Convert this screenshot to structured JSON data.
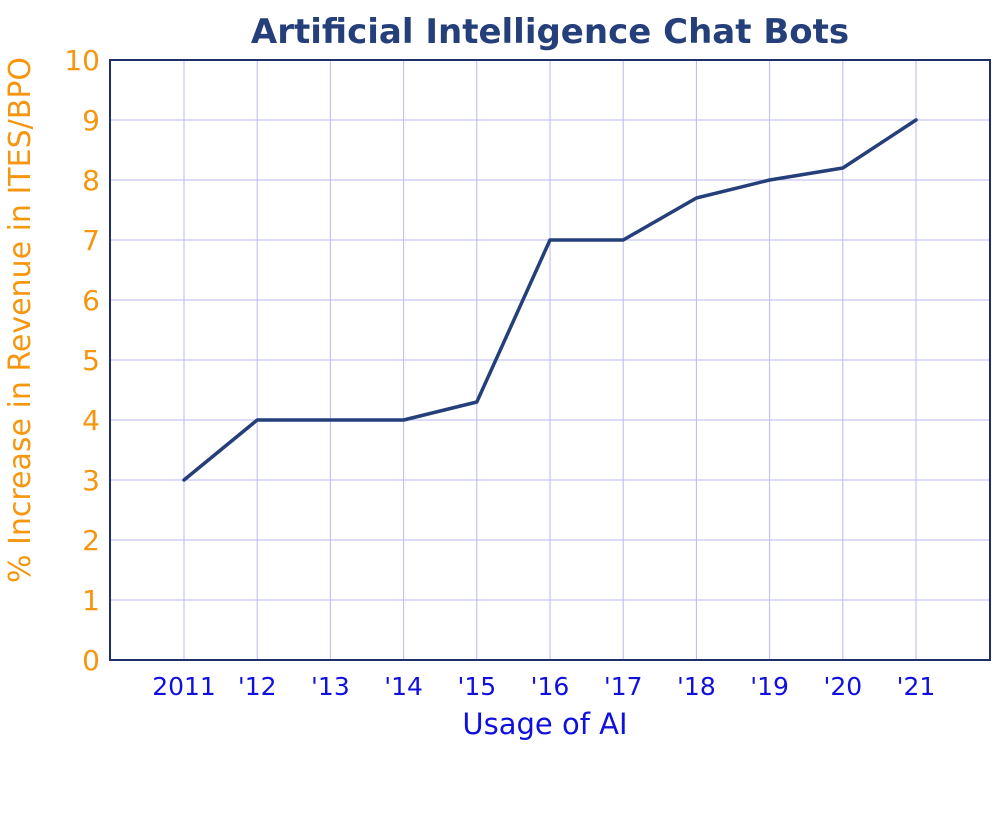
{
  "chart_data": {
    "type": "line",
    "title": "Artificial Intelligence Chat Bots",
    "xlabel": "Usage of AI",
    "ylabel": "% Increase in Revenue in ITES/BPO",
    "categories": [
      "2011",
      "'12",
      "'13",
      "'14",
      "'15",
      "'16",
      "'17",
      "'18",
      "'19",
      "'20",
      "'21"
    ],
    "values": [
      3,
      4,
      4,
      4,
      4.3,
      7,
      7,
      7.7,
      8,
      8.2,
      9
    ],
    "ylim": [
      0,
      10
    ],
    "yticks": [
      "0",
      "1",
      "2",
      "3",
      "4",
      "5",
      "6",
      "7",
      "8",
      "9",
      "10"
    ],
    "grid": true,
    "colors": {
      "line": "#243f7a",
      "title": "#243f7a",
      "axis_frame": "#1f2f6b",
      "grid": "#b8b8f0",
      "y_text": "#f5960f",
      "x_text": "#1010dd"
    }
  }
}
